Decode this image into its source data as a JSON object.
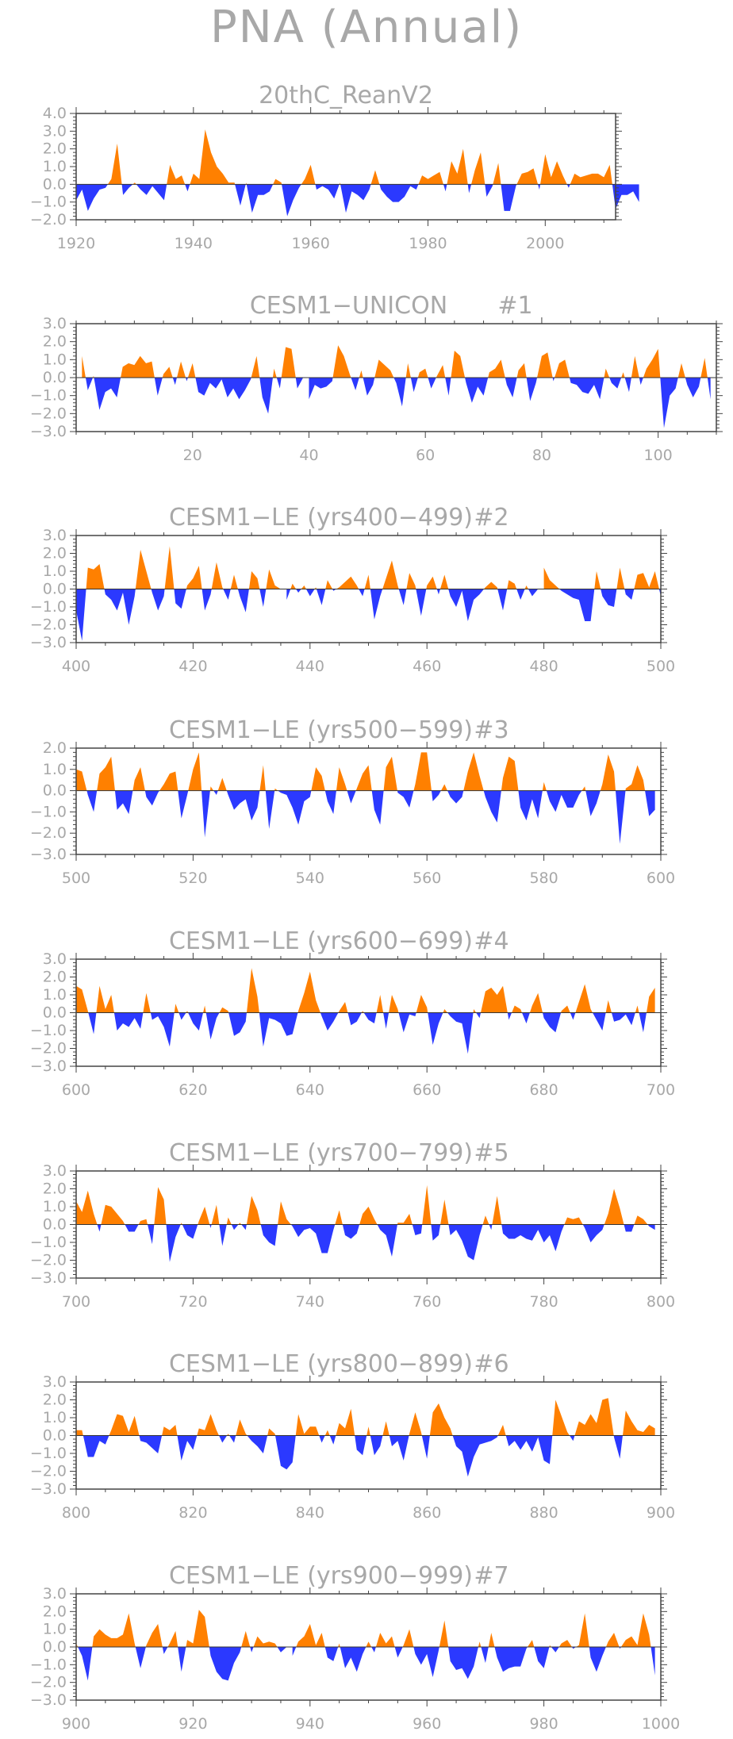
{
  "title": "PNA (Annual)",
  "colors": {
    "positive": "#ff8000",
    "negative": "#2b39ff",
    "text": "#a8a8a8",
    "frame": "#444444"
  },
  "chart_data": [
    {
      "type": "area",
      "title": "20thC_ReanV2",
      "xlim": [
        1920,
        2012
      ],
      "ylim": [
        -2.0,
        4.0
      ],
      "yticks": [
        -2.0,
        -1.0,
        0.0,
        1.0,
        2.0,
        3.0,
        4.0
      ],
      "yticklabels": [
        "−2.0",
        "−1.0",
        "0.0",
        "1.0",
        "2.0",
        "3.0",
        "4.0"
      ],
      "xticks": [
        1920,
        1940,
        1960,
        1980,
        2000
      ],
      "xticklabels": [
        "1920",
        "1940",
        "1960",
        "1980",
        "2000"
      ],
      "x_start": 1920,
      "values": [
        -0.9,
        -0.3,
        -1.5,
        -0.8,
        -0.3,
        -0.2,
        0.3,
        2.3,
        -0.6,
        -0.2,
        0.1,
        -0.3,
        -0.6,
        -0.1,
        -0.5,
        -0.9,
        1.1,
        0.3,
        0.5,
        -0.4,
        0.6,
        0.3,
        3.1,
        1.8,
        1.0,
        0.6,
        0.1,
        0.1,
        -1.2,
        0.1,
        -1.6,
        -0.6,
        -0.6,
        -0.4,
        0.3,
        0.1,
        -1.8,
        -0.9,
        -0.2,
        0.3,
        1.1,
        -0.3,
        -0.1,
        -0.3,
        -0.8,
        0.1,
        -1.6,
        -0.4,
        -0.6,
        -0.9,
        -0.3,
        0.8,
        -0.3,
        -0.7,
        -1.0,
        -1.0,
        -0.7,
        -0.1,
        -0.3,
        0.5,
        0.3,
        0.5,
        0.7,
        -0.4,
        1.3,
        0.6,
        2.0,
        -0.5,
        0.8,
        1.8,
        -0.7,
        -0.1,
        1.2,
        -1.5,
        -1.5,
        -0.1,
        0.6,
        0.7,
        0.9,
        -0.3,
        1.7,
        0.4,
        1.3,
        0.5,
        -0.2,
        0.6,
        0.4,
        0.5,
        0.6,
        0.6,
        0.4,
        1.1,
        -1.4,
        -0.6,
        -0.6,
        -0.4,
        -1.0
      ]
    },
    {
      "type": "area",
      "title": "CESM1−UNICON",
      "label": "#1",
      "xlim": [
        0,
        110
      ],
      "ylim": [
        -3.0,
        3.0
      ],
      "yticks": [
        -3.0,
        -2.0,
        -1.0,
        0.0,
        1.0,
        2.0,
        3.0
      ],
      "yticklabels": [
        "−3.0",
        "−2.0",
        "−1.0",
        "0.0",
        "1.0",
        "2.0",
        "3.0"
      ],
      "xticks": [
        20,
        40,
        60,
        80,
        100
      ],
      "xticklabels": [
        "20",
        "40",
        "60",
        "80",
        "100"
      ],
      "x_start": 1,
      "values": [
        1.2,
        -0.7,
        0.1,
        -1.8,
        -0.8,
        -0.6,
        -1.1,
        0.6,
        0.8,
        0.7,
        1.2,
        0.8,
        0.9,
        -1.0,
        0.2,
        0.6,
        -0.4,
        0.9,
        -0.2,
        0.8,
        -0.8,
        -1.0,
        -0.3,
        -0.6,
        -0.1,
        -1.1,
        -0.6,
        -1.2,
        -0.7,
        -0.1,
        1.2,
        -1.1,
        -2.0,
        0.5,
        -0.6,
        1.7,
        1.6,
        -0.6,
        0.0,
        -1.2,
        -0.4,
        -0.6,
        -0.5,
        -0.2,
        1.8,
        1.2,
        0.2,
        -0.7,
        0.4,
        -1.0,
        -0.4,
        1.0,
        0.7,
        0.4,
        -0.3,
        -1.6,
        0.8,
        -0.8,
        0.3,
        0.5,
        -0.6,
        0.1,
        0.7,
        -1.0,
        1.5,
        1.2,
        -0.3,
        -1.4,
        -0.5,
        -1.0,
        0.3,
        0.5,
        1.0,
        -0.4,
        -1.1,
        0.4,
        0.8,
        -1.3,
        -0.3,
        1.2,
        1.4,
        -0.2,
        0.8,
        1.0,
        -0.3,
        -0.4,
        -0.8,
        -0.9,
        -0.4,
        -1.2,
        0.5,
        -0.3,
        -0.6,
        0.3,
        -0.8,
        1.2,
        -0.4,
        0.5,
        1.0,
        1.6,
        -2.8,
        -1.0,
        -0.6,
        0.8,
        -0.4,
        -1.1,
        -0.5,
        1.1,
        -1.2
      ]
    },
    {
      "type": "area",
      "title": "CESM1−LE (yrs400−499)",
      "label": "#2",
      "xlim": [
        400,
        500
      ],
      "ylim": [
        -3.0,
        3.0
      ],
      "yticks": [
        -3.0,
        -2.0,
        -1.0,
        0.0,
        1.0,
        2.0,
        3.0
      ],
      "yticklabels": [
        "−3.0",
        "−2.0",
        "−1.0",
        "0.0",
        "1.0",
        "2.0",
        "3.0"
      ],
      "xticks": [
        400,
        420,
        440,
        460,
        480,
        500
      ],
      "xticklabels": [
        "400",
        "420",
        "440",
        "460",
        "480",
        "500"
      ],
      "x_start": 400,
      "values": [
        -1.2,
        -2.9,
        1.2,
        1.1,
        1.4,
        -0.3,
        -0.6,
        -1.2,
        -0.2,
        -2.0,
        -0.4,
        2.2,
        1.0,
        -0.2,
        -1.2,
        -0.4,
        2.4,
        -0.8,
        -1.1,
        0.2,
        0.6,
        1.3,
        -1.2,
        -0.3,
        1.5,
        0.1,
        -0.6,
        0.8,
        -0.4,
        -1.3,
        1.0,
        0.6,
        -1.0,
        1.1,
        0.2,
        0.0,
        -0.6,
        0.3,
        -0.2,
        0.2,
        -0.4,
        0.1,
        -0.9,
        0.5,
        -0.1,
        0.1,
        0.4,
        0.7,
        0.2,
        -0.4,
        0.8,
        -1.7,
        -0.4,
        0.6,
        1.6,
        0.2,
        -0.9,
        0.9,
        0.2,
        -1.5,
        0.2,
        0.7,
        -0.3,
        0.8,
        -0.4,
        -1.0,
        -0.1,
        -1.8,
        -0.6,
        -0.3,
        0.1,
        0.4,
        0.1,
        -1.2,
        0.5,
        0.3,
        -0.6,
        0.2,
        -0.4,
        0.0,
        1.2,
        0.5,
        0.2,
        -0.1,
        -0.3,
        -0.5,
        -0.6,
        -1.8,
        -1.8,
        1.0,
        -0.4,
        -0.9,
        -1.0,
        1.2,
        -0.3,
        -0.6,
        0.8,
        0.9,
        0.1,
        1.0,
        -0.4
      ]
    },
    {
      "type": "area",
      "title": "CESM1−LE (yrs500−599)",
      "label": "#3",
      "xlim": [
        500,
        600
      ],
      "ylim": [
        -3.0,
        2.0
      ],
      "yticks": [
        -3.0,
        -2.0,
        -1.0,
        0.0,
        1.0,
        2.0
      ],
      "yticklabels": [
        "−3.0",
        "−2.0",
        "−1.0",
        "0.0",
        "1.0",
        "2.0"
      ],
      "xticks": [
        500,
        520,
        540,
        560,
        580,
        600
      ],
      "xticklabels": [
        "500",
        "520",
        "540",
        "560",
        "580",
        "600"
      ],
      "x_start": 500,
      "values": [
        1.0,
        0.9,
        -0.2,
        -1.0,
        0.8,
        1.1,
        1.6,
        -0.9,
        -0.6,
        -1.1,
        0.5,
        1.1,
        -0.3,
        -0.7,
        -0.1,
        0.3,
        0.8,
        0.9,
        -1.3,
        -0.2,
        1.0,
        1.8,
        -2.2,
        0.2,
        -0.2,
        0.6,
        -0.2,
        -0.9,
        -0.6,
        -0.4,
        -1.4,
        -0.8,
        1.2,
        -1.8,
        0.1,
        -0.1,
        -0.2,
        -0.8,
        -1.6,
        -0.5,
        -0.3,
        1.1,
        0.7,
        -0.5,
        -1.1,
        1.1,
        0.3,
        -0.6,
        0.1,
        0.8,
        1.2,
        -0.9,
        -1.6,
        1.1,
        1.6,
        -0.1,
        -0.3,
        -0.8,
        0.3,
        1.8,
        1.8,
        -0.5,
        -0.2,
        0.3,
        -0.3,
        -0.6,
        -0.3,
        0.9,
        1.8,
        0.7,
        -0.3,
        -1.0,
        -1.5,
        0.6,
        1.6,
        1.4,
        -0.8,
        -1.4,
        -0.4,
        -1.3,
        0.4,
        -0.5,
        -1.0,
        -0.2,
        -0.8,
        -0.8,
        -0.2,
        0.2,
        -1.2,
        -0.6,
        0.3,
        1.7,
        0.9,
        -2.5,
        0.1,
        0.3,
        1.2,
        0.5,
        -1.2,
        -0.9
      ]
    },
    {
      "type": "area",
      "title": "CESM1−LE (yrs600−699)",
      "label": "#4",
      "xlim": [
        600,
        700
      ],
      "ylim": [
        -3.0,
        3.0
      ],
      "yticks": [
        -3.0,
        -2.0,
        -1.0,
        0.0,
        1.0,
        2.0,
        3.0
      ],
      "yticklabels": [
        "−3.0",
        "−2.0",
        "−1.0",
        "0.0",
        "1.0",
        "2.0",
        "3.0"
      ],
      "xticks": [
        600,
        620,
        640,
        660,
        680,
        700
      ],
      "xticklabels": [
        "600",
        "620",
        "640",
        "660",
        "680",
        "700"
      ],
      "x_start": 600,
      "values": [
        1.5,
        1.3,
        0.1,
        -1.2,
        1.5,
        0.2,
        1.0,
        -1.0,
        -0.6,
        -0.8,
        -0.3,
        -0.9,
        1.1,
        -0.4,
        -0.2,
        -0.8,
        -1.9,
        0.5,
        -0.4,
        0.1,
        -0.6,
        -1.0,
        0.4,
        -1.5,
        -0.3,
        0.3,
        0.1,
        -1.3,
        -1.1,
        -0.5,
        2.5,
        0.9,
        -1.9,
        -0.3,
        -0.4,
        -0.6,
        -1.3,
        -1.2,
        0.1,
        1.1,
        2.3,
        0.7,
        -0.2,
        -1.0,
        -0.5,
        0.1,
        0.6,
        -0.7,
        -0.5,
        0.1,
        -0.4,
        -0.6,
        1.0,
        -0.9,
        1.0,
        0.2,
        -1.1,
        -0.1,
        -0.2,
        1.0,
        0.3,
        -1.8,
        -0.6,
        0.2,
        -0.2,
        -0.5,
        -0.6,
        -2.3,
        0.2,
        -0.3,
        1.2,
        1.4,
        1.0,
        1.5,
        -0.4,
        0.4,
        0.2,
        -0.6,
        0.4,
        1.1,
        -0.3,
        -0.8,
        -1.1,
        0.1,
        0.4,
        -0.4,
        0.6,
        1.6,
        0.2,
        -0.4,
        -1.0,
        0.7,
        -0.5,
        -0.4,
        -0.1,
        -0.7,
        0.4,
        -1.1,
        0.9,
        1.4
      ]
    },
    {
      "type": "area",
      "title": "CESM1−LE (yrs700−799)",
      "label": "#5",
      "xlim": [
        700,
        800
      ],
      "ylim": [
        -3.0,
        3.0
      ],
      "yticks": [
        -3.0,
        -2.0,
        -1.0,
        0.0,
        1.0,
        2.0,
        3.0
      ],
      "yticklabels": [
        "−3.0",
        "−2.0",
        "−1.0",
        "0.0",
        "1.0",
        "2.0",
        "3.0"
      ],
      "xticks": [
        700,
        720,
        740,
        760,
        780,
        800
      ],
      "xticklabels": [
        "700",
        "720",
        "740",
        "760",
        "780",
        "800"
      ],
      "x_start": 700,
      "values": [
        1.3,
        0.7,
        1.9,
        0.6,
        -0.4,
        1.1,
        1.0,
        0.6,
        0.2,
        -0.4,
        -0.4,
        0.2,
        0.3,
        -1.1,
        2.1,
        1.4,
        -2.1,
        -0.7,
        0.1,
        -0.6,
        -0.8,
        0.2,
        1.0,
        -0.2,
        1.1,
        -1.2,
        0.4,
        -0.3,
        0.1,
        -0.3,
        1.6,
        0.8,
        -0.6,
        -1.0,
        -1.2,
        1.3,
        0.3,
        -0.1,
        -0.7,
        -0.3,
        -0.2,
        -0.5,
        -1.6,
        -1.6,
        -0.3,
        0.8,
        -0.6,
        -0.8,
        -0.5,
        0.6,
        1.0,
        0.3,
        -0.3,
        -0.6,
        -1.8,
        0.1,
        0.1,
        0.6,
        -0.6,
        -0.5,
        2.2,
        -0.9,
        -0.6,
        1.4,
        -0.6,
        -0.3,
        -0.9,
        -1.8,
        -2.0,
        -0.6,
        0.5,
        -0.3,
        1.6,
        -0.5,
        -0.8,
        -0.8,
        -0.6,
        -0.8,
        -0.9,
        -0.3,
        -1.0,
        -0.6,
        -1.5,
        -0.4,
        0.4,
        0.3,
        0.4,
        -0.2,
        -1.0,
        -0.6,
        -0.3,
        0.6,
        2.0,
        0.9,
        -0.4,
        -0.4,
        0.5,
        0.3,
        -0.1,
        -0.3
      ]
    },
    {
      "type": "area",
      "title": "CESM1−LE (yrs800−899)",
      "label": "#6",
      "xlim": [
        800,
        900
      ],
      "ylim": [
        -3.0,
        3.0
      ],
      "yticks": [
        -3.0,
        -2.0,
        -1.0,
        0.0,
        1.0,
        2.0,
        3.0
      ],
      "yticklabels": [
        "−3.0",
        "−2.0",
        "−1.0",
        "0.0",
        "1.0",
        "2.0",
        "3.0"
      ],
      "xticks": [
        800,
        820,
        840,
        860,
        880,
        900
      ],
      "xticklabels": [
        "800",
        "820",
        "840",
        "860",
        "880",
        "900"
      ],
      "x_start": 800,
      "values": [
        0.3,
        0.3,
        -1.2,
        -1.2,
        -0.3,
        -0.5,
        0.3,
        1.2,
        1.1,
        0.2,
        1.1,
        -0.3,
        -0.4,
        -0.7,
        -1.0,
        0.5,
        0.3,
        0.6,
        -1.4,
        -0.3,
        -0.8,
        0.4,
        0.3,
        1.2,
        0.3,
        -0.4,
        0.1,
        -0.4,
        0.9,
        0.1,
        -0.3,
        -0.6,
        -1.0,
        0.4,
        0.1,
        -1.7,
        -1.9,
        -1.5,
        1.2,
        0.1,
        0.5,
        0.5,
        -0.4,
        0.3,
        -0.5,
        0.7,
        0.4,
        1.5,
        -0.8,
        -1.1,
        0.5,
        -1.1,
        -0.6,
        0.8,
        -0.6,
        -0.3,
        -1.4,
        0.1,
        1.3,
        0.2,
        -1.3,
        1.3,
        1.8,
        1.0,
        0.4,
        -0.6,
        -0.9,
        -2.3,
        -1.2,
        -0.5,
        -0.4,
        -0.3,
        -0.1,
        0.6,
        -0.6,
        -0.3,
        -0.8,
        -0.3,
        -0.9,
        -0.1,
        -1.4,
        -1.6,
        2.0,
        1.1,
        0.2,
        -0.3,
        0.8,
        0.6,
        1.2,
        0.7,
        2.0,
        2.1,
        -0.1,
        -1.3,
        1.4,
        0.8,
        0.3,
        0.2,
        0.6,
        0.4
      ]
    },
    {
      "type": "area",
      "title": "CESM1−LE (yrs900−999)",
      "label": "#7",
      "xlim": [
        900,
        1000
      ],
      "ylim": [
        -3.0,
        3.0
      ],
      "yticks": [
        -3.0,
        -2.0,
        -1.0,
        0.0,
        1.0,
        2.0,
        3.0
      ],
      "yticklabels": [
        "−3.0",
        "−2.0",
        "−1.0",
        "0.0",
        "1.0",
        "2.0",
        "3.0"
      ],
      "xticks": [
        900,
        920,
        940,
        960,
        980,
        1000
      ],
      "xticklabels": [
        "900",
        "920",
        "940",
        "960",
        "980",
        "1000"
      ],
      "x_start": 900,
      "values": [
        0.2,
        -0.5,
        -1.9,
        0.6,
        1.0,
        0.7,
        0.5,
        0.5,
        0.7,
        1.9,
        0.2,
        -1.2,
        0.1,
        0.8,
        1.3,
        -0.4,
        0.2,
        0.9,
        -1.4,
        0.4,
        0.2,
        2.1,
        1.7,
        -0.5,
        -1.4,
        -1.8,
        -1.9,
        -0.9,
        -0.3,
        0.9,
        -0.3,
        0.6,
        0.2,
        0.3,
        0.2,
        -0.3,
        0.0,
        -0.5,
        0.3,
        0.6,
        1.3,
        0.1,
        0.8,
        -0.6,
        -0.8,
        0.2,
        -1.2,
        -0.6,
        -1.4,
        -0.4,
        0.3,
        -0.3,
        0.8,
        0.2,
        0.6,
        -0.6,
        0.1,
        1.0,
        -0.4,
        -1.0,
        -0.4,
        -1.7,
        -0.2,
        1.5,
        -0.8,
        -1.3,
        -1.2,
        -1.8,
        -1.1,
        0.3,
        -0.9,
        0.8,
        -0.6,
        -1.4,
        -1.2,
        -1.1,
        -1.1,
        -0.1,
        0.4,
        -0.8,
        -1.2,
        0.1,
        -0.3,
        0.2,
        0.4,
        -0.1,
        0.1,
        1.9,
        -0.6,
        -1.4,
        -0.5,
        0.3,
        0.8,
        -0.1,
        0.4,
        0.6,
        0.1,
        1.9,
        0.7,
        -1.6
      ]
    }
  ]
}
